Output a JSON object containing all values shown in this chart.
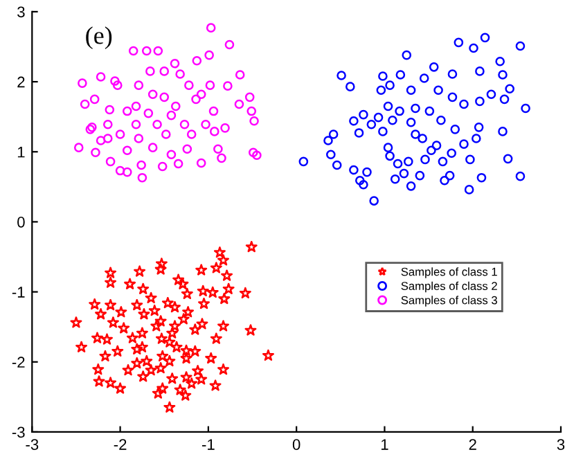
{
  "chart_data": {
    "type": "scatter",
    "annotations": [
      "(e)"
    ],
    "xlim": [
      -3,
      3
    ],
    "ylim": [
      -3,
      3
    ],
    "xticks": [
      -3,
      -2,
      -1,
      0,
      1,
      2,
      3
    ],
    "yticks": [
      -3,
      -2,
      -1,
      0,
      1,
      2,
      3
    ],
    "grid": false,
    "legend": "right",
    "series": [
      {
        "name": "Samples of class 1",
        "color": "#ff0000",
        "marker": "star",
        "x": [
          -0.51,
          -0.32,
          -0.52,
          -0.58,
          -0.87,
          -0.83,
          -0.91,
          -0.79,
          -0.77,
          -0.82,
          -0.95,
          -1.08,
          -1.06,
          -1.05,
          -0.83,
          -0.91,
          -0.97,
          -0.83,
          -0.92,
          -1.08,
          -1.12,
          -1.15,
          -1.15,
          -1.07,
          -1.25,
          -1.25,
          -1.19,
          -1.25,
          -1.26,
          -1.32,
          -1.44,
          -1.41,
          -1.44,
          -1.36,
          -1.44,
          -1.52,
          -1.54,
          -1.52,
          -1.57,
          -1.65,
          -1.74,
          -1.81,
          -1.91,
          -2.0,
          -2.11,
          -2.24,
          -2.25,
          -2.17,
          -2.44,
          -2.5,
          -2.26,
          -2.15,
          -2.08,
          -2.22,
          -2.29,
          -2.11,
          -2.11,
          -2.11,
          -1.89,
          -1.78,
          -1.99,
          -1.96,
          -2.03,
          -1.81,
          -1.86,
          -1.75,
          -1.81,
          -1.74,
          -1.65,
          -1.73,
          -1.59,
          -1.54,
          -1.53,
          -1.53,
          -1.54,
          -1.46,
          -1.38,
          -1.34,
          -1.29,
          -1.24,
          -1.28,
          -1.23,
          -1.38,
          -1.41,
          -1.61,
          -1.75,
          -1.7
        ],
        "values": [
          -0.36,
          -1.91,
          -1.55,
          -1.02,
          -0.44,
          -0.55,
          -0.66,
          -0.77,
          -0.96,
          -1.1,
          -1.01,
          -0.69,
          -0.99,
          -1.17,
          -1.49,
          -1.67,
          -1.95,
          -2.11,
          -2.34,
          -2.25,
          -2.13,
          -1.85,
          -1.54,
          -1.46,
          -1.84,
          -1.95,
          -2.31,
          -2.22,
          -2.48,
          -2.4,
          -2.65,
          -2.24,
          -1.99,
          -1.79,
          -1.72,
          -1.92,
          -2.09,
          -2.38,
          -2.45,
          -2.12,
          -2.21,
          -2.02,
          -2.12,
          -2.38,
          -2.3,
          -2.28,
          -2.11,
          -1.92,
          -1.79,
          -1.44,
          -1.66,
          -1.68,
          -1.44,
          -1.32,
          -1.18,
          -1.19,
          -0.87,
          -0.73,
          -0.89,
          -0.71,
          -1.29,
          -1.52,
          -1.85,
          -1.82,
          -1.66,
          -1.59,
          -1.19,
          -0.96,
          -1.09,
          -1.32,
          -1.49,
          -1.42,
          -1.67,
          -0.6,
          -0.68,
          -1.16,
          -1.22,
          -0.83,
          -0.89,
          -1.03,
          -1.39,
          -1.29,
          -1.49,
          -1.59,
          -1.27,
          -1.79,
          -1.99
        ]
      },
      {
        "name": "Samples of class 2",
        "color": "#0000ff",
        "marker": "circle",
        "x": [
          2.14,
          1.84,
          2.01,
          2.54,
          1.25,
          0.51,
          0.61,
          0.98,
          1.18,
          1.56,
          1.77,
          2.08,
          2.31,
          2.34,
          2.42,
          2.6,
          2.36,
          2.21,
          2.08,
          1.9,
          1.77,
          1.61,
          1.45,
          1.3,
          1.06,
          0.96,
          1.04,
          1.17,
          1.35,
          1.51,
          1.64,
          1.8,
          2.07,
          2.34,
          2.04,
          1.9,
          1.76,
          1.97,
          2.4,
          2.54,
          2.1,
          1.96,
          1.74,
          1.66,
          1.59,
          1.43,
          1.3,
          1.09,
          0.93,
          0.76,
          0.65,
          0.71,
          0.42,
          0.36,
          0.39,
          0.46,
          0.08,
          0.65,
          0.72,
          0.8,
          0.76,
          0.88,
          1.04,
          1.06,
          1.15,
          1.27,
          1.22,
          1.12,
          1.3,
          1.4,
          1.46,
          1.53,
          1.68,
          0.98,
          0.85,
          1.35
        ],
        "values": [
          2.63,
          2.56,
          2.48,
          2.51,
          2.38,
          2.09,
          1.93,
          2.08,
          2.1,
          2.21,
          2.11,
          2.15,
          2.29,
          2.1,
          1.9,
          1.62,
          1.75,
          1.82,
          1.72,
          1.68,
          1.78,
          1.88,
          2.05,
          1.88,
          1.95,
          1.88,
          1.65,
          1.58,
          1.62,
          1.58,
          1.45,
          1.32,
          1.35,
          1.29,
          1.19,
          1.11,
          0.98,
          0.89,
          0.9,
          0.65,
          0.63,
          0.46,
          0.66,
          0.86,
          1.09,
          1.19,
          1.42,
          1.45,
          1.49,
          1.53,
          1.44,
          1.27,
          1.25,
          1.16,
          0.96,
          0.81,
          0.86,
          0.74,
          0.59,
          0.71,
          0.53,
          0.3,
          1.06,
          0.94,
          0.83,
          0.86,
          0.69,
          0.61,
          0.51,
          0.66,
          0.89,
          1.02,
          0.59,
          1.29,
          1.39,
          1.25
        ]
      },
      {
        "name": "Samples of class 3",
        "color": "#ff00ff",
        "marker": "circle",
        "x": [
          -0.97,
          -0.76,
          -1.85,
          -1.7,
          -1.57,
          -0.99,
          -1.13,
          -1.38,
          -0.64,
          -0.78,
          -2.43,
          -2.22,
          -2.06,
          -2.03,
          -2.4,
          -2.29,
          -2.12,
          -2.32,
          -2.34,
          -2.22,
          -2.47,
          -2.28,
          -2.11,
          -2.0,
          -1.92,
          -1.75,
          -1.76,
          -1.52,
          -1.34,
          -1.08,
          -0.85,
          -0.49,
          -0.45,
          -0.89,
          -1.24,
          -1.42,
          -1.63,
          -1.92,
          -2.0,
          -1.82,
          -1.68,
          -1.58,
          -1.42,
          -1.48,
          -1.27,
          -1.19,
          -1.03,
          -0.93,
          -0.81,
          -0.94,
          -1.14,
          -1.08,
          -1.22,
          -1.32,
          -1.5,
          -1.66,
          -1.79,
          -1.63,
          -1.5,
          -1.37,
          -1.82,
          -1.92,
          -0.65,
          -0.51,
          -0.48,
          -0.53,
          -2.14,
          -2.14,
          -1.79,
          -0.98
        ],
        "values": [
          2.77,
          2.53,
          2.44,
          2.44,
          2.44,
          2.38,
          2.3,
          2.26,
          2.1,
          1.94,
          1.98,
          2.07,
          2.01,
          1.95,
          1.68,
          1.75,
          1.6,
          1.35,
          1.32,
          1.16,
          1.06,
          0.99,
          0.86,
          0.73,
          0.71,
          0.63,
          0.81,
          0.79,
          0.83,
          0.84,
          0.91,
          0.99,
          0.95,
          1.04,
          1.04,
          0.96,
          1.06,
          1.02,
          1.25,
          1.39,
          1.55,
          1.39,
          1.52,
          1.25,
          1.39,
          1.25,
          1.39,
          1.29,
          1.34,
          1.58,
          1.75,
          1.82,
          1.95,
          2.11,
          2.15,
          2.15,
          1.95,
          1.82,
          1.78,
          1.65,
          1.65,
          1.58,
          1.68,
          1.58,
          1.44,
          1.78,
          1.39,
          1.19,
          1.19,
          1.95
        ]
      }
    ]
  }
}
